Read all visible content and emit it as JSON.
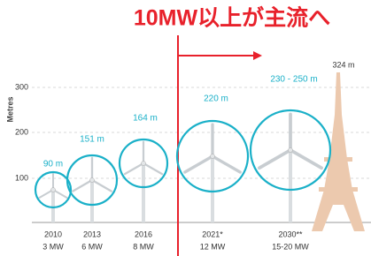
{
  "header": {
    "title": "10MW以上が主流へ"
  },
  "axis": {
    "label": "Metres",
    "ticks": [
      "300",
      "200",
      "100"
    ]
  },
  "turbines": [
    {
      "label": "90 m",
      "year": "2010",
      "capacity": "3 MW"
    },
    {
      "label": "151 m",
      "year": "2013",
      "capacity": "6 MW"
    },
    {
      "label": "164 m",
      "year": "2016",
      "capacity": "8 MW"
    },
    {
      "label": "220 m",
      "year": "2021*",
      "capacity": "12 MW"
    },
    {
      "label": "230 - 250 m",
      "year": "2030**",
      "capacity": "15-20 MW"
    }
  ],
  "tower": {
    "label": "324 m"
  }
}
